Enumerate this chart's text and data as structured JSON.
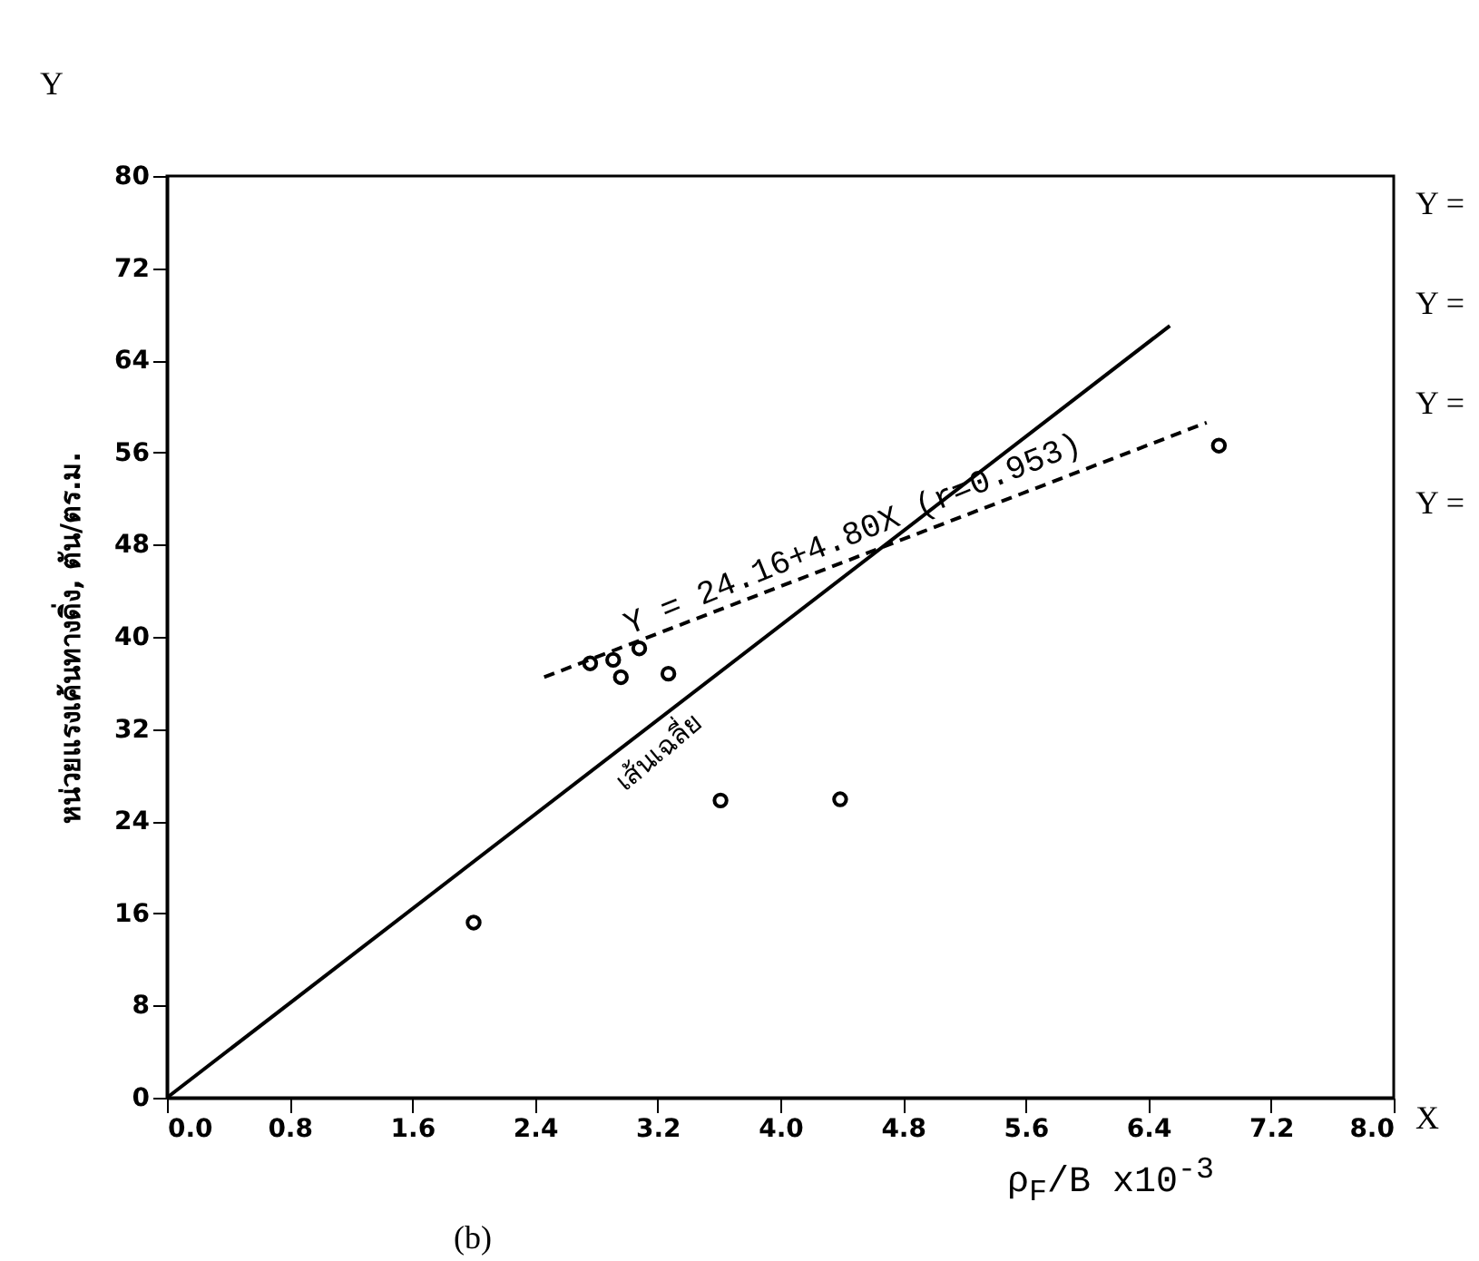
{
  "chart_data": {
    "type": "scatter",
    "ylabel": "หน่วยแรงเค้นทางดิ่ง, ตัน/ตร.ม.",
    "xlabel": "ρ$_{F}$/B  x10$^{-3}$",
    "xlim": [
      0,
      8
    ],
    "ylim": [
      0,
      80
    ],
    "xticks": [
      {
        "value": 0,
        "label": "0.0"
      },
      {
        "value": 0.8,
        "label": "0.8"
      },
      {
        "value": 1.6,
        "label": "1.6"
      },
      {
        "value": 2.4,
        "label": "2.4"
      },
      {
        "value": 3.2,
        "label": "3.2"
      },
      {
        "value": 4,
        "label": "4.0"
      },
      {
        "value": 4.8,
        "label": "4.8"
      },
      {
        "value": 5.6,
        "label": "5.6"
      },
      {
        "value": 6.4,
        "label": "6.4"
      },
      {
        "value": 7.2,
        "label": "7.2"
      },
      {
        "value": 8,
        "label": "8.0"
      }
    ],
    "yticks": [
      0,
      8,
      16,
      24,
      32,
      40,
      48,
      56,
      64,
      72,
      80
    ],
    "grid": false,
    "series": [
      {
        "color": "#000000",
        "marker": "circle",
        "x": [
          2.0,
          2.76,
          2.91,
          2.96,
          3.08,
          3.27,
          3.61,
          4.39,
          6.86
        ],
        "values": [
          15.2,
          37.7,
          38,
          36.5,
          39,
          36.8,
          25.8,
          25.9,
          56.6
        ]
      },
      {
        "type": "line",
        "color": "#000000",
        "line_style": "solid",
        "x": [
          0,
          6.54
        ],
        "values": [
          0,
          67
        ]
      },
      {
        "type": "line",
        "color": "#000000",
        "line_style": "dashed",
        "x": [
          2.46,
          6.78
        ],
        "values": [
          36.5,
          58.6
        ]
      }
    ],
    "annotations": [
      {
        "text": "Y = 24.16+4.80X (r=0.953)",
        "x": 4.5,
        "y": 48
      },
      {
        "text": "เส้นเฉลี่ย",
        "x": 3.1,
        "y": 31.7
      },
      "Y",
      "X",
      "(b)",
      "Y =",
      "Y =",
      "Y =",
      "Y ="
    ]
  }
}
